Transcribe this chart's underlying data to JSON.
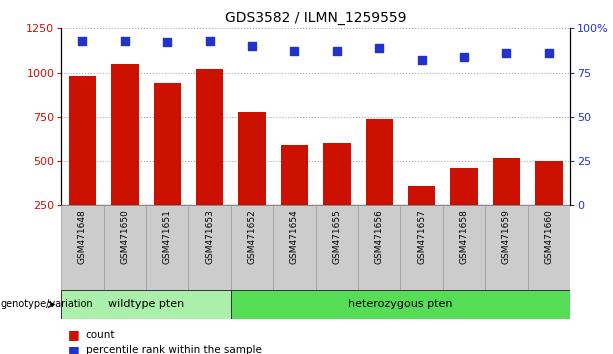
{
  "title": "GDS3582 / ILMN_1259559",
  "samples": [
    "GSM471648",
    "GSM471650",
    "GSM471651",
    "GSM471653",
    "GSM471652",
    "GSM471654",
    "GSM471655",
    "GSM471656",
    "GSM471657",
    "GSM471658",
    "GSM471659",
    "GSM471660"
  ],
  "counts": [
    980,
    1050,
    940,
    1020,
    780,
    590,
    600,
    740,
    360,
    460,
    520,
    500
  ],
  "percentiles": [
    93,
    93,
    92,
    93,
    90,
    87,
    87,
    89,
    82,
    84,
    86,
    86
  ],
  "bar_color": "#cc1100",
  "dot_color": "#2233cc",
  "ylim_left": [
    250,
    1250
  ],
  "ylim_right": [
    0,
    100
  ],
  "yticks_left": [
    250,
    500,
    750,
    1000,
    1250
  ],
  "yticks_right": [
    0,
    25,
    50,
    75,
    100
  ],
  "ytick_labels_right": [
    "0",
    "25",
    "50",
    "75",
    "100%"
  ],
  "wildtype_samples": [
    "GSM471648",
    "GSM471650",
    "GSM471651",
    "GSM471653"
  ],
  "heterozygous_samples": [
    "GSM471652",
    "GSM471654",
    "GSM471655",
    "GSM471656",
    "GSM471657",
    "GSM471658",
    "GSM471659",
    "GSM471660"
  ],
  "wildtype_label": "wildtype pten",
  "heterozygous_label": "heterozygous pten",
  "wildtype_color": "#aaf0aa",
  "heterozygous_color": "#55dd55",
  "group_label_prefix": "genotype/variation",
  "legend_count_label": "count",
  "legend_pct_label": "percentile rank within the sample",
  "bar_width": 0.65,
  "dot_size": 40,
  "grid_color": "#aaaaaa",
  "bg_color": "#ffffff",
  "tick_label_color_left": "#cc1100",
  "tick_label_color_right": "#2233cc"
}
